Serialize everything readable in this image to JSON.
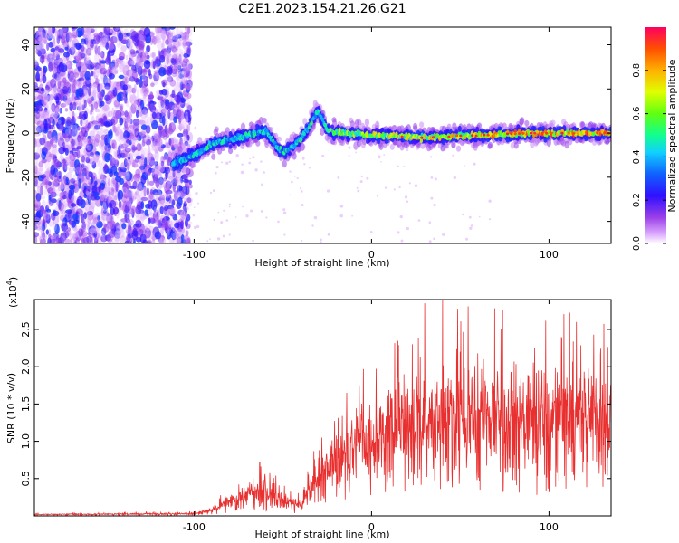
{
  "title": "C2E1.2023.154.21.26.G21",
  "colors": {
    "spectrogram_scale": [
      "#d9a6f5",
      "#9b3fe8",
      "#5a00e0",
      "#1a1aff",
      "#1fbfff",
      "#19ff8c",
      "#9bff19",
      "#ffe000",
      "#ff8000",
      "#ff1050"
    ],
    "snr_line": "#e83030"
  },
  "chart_data": [
    {
      "type": "heatmap",
      "xlabel": "Height of straight line (km)",
      "ylabel": "Frequency (Hz)",
      "xlim": [
        -190,
        135
      ],
      "ylim": [
        -50,
        48
      ],
      "xticks": [
        -100,
        0,
        100
      ],
      "xtick_labels": [
        "-100",
        "0",
        "100"
      ],
      "yticks": [
        -40,
        -20,
        0,
        20,
        40
      ],
      "ytick_labels": [
        "-40",
        "-20",
        "0",
        "20",
        "40"
      ],
      "colorbar": {
        "label": "Normalized spectral amplitude",
        "range": [
          0,
          1
        ],
        "ticks": [
          0.0,
          0.2,
          0.4,
          0.6,
          0.8
        ],
        "tick_labels": [
          "0.0",
          "0.2",
          "0.4",
          "0.6",
          "0.8"
        ]
      },
      "noise_region_x": [
        -190,
        -102
      ],
      "ridge": [
        {
          "x": -112,
          "y": -14,
          "amp": 0.45
        },
        {
          "x": -100,
          "y": -10,
          "amp": 0.5
        },
        {
          "x": -90,
          "y": -5,
          "amp": 0.5
        },
        {
          "x": -75,
          "y": -2,
          "amp": 0.5
        },
        {
          "x": -60,
          "y": 1,
          "amp": 0.48
        },
        {
          "x": -50,
          "y": -9,
          "amp": 0.5
        },
        {
          "x": -40,
          "y": -3,
          "amp": 0.55
        },
        {
          "x": -30,
          "y": 10,
          "amp": 0.5
        },
        {
          "x": -25,
          "y": 1,
          "amp": 0.6
        },
        {
          "x": 0,
          "y": -1,
          "amp": 0.7
        },
        {
          "x": 30,
          "y": -2,
          "amp": 0.75
        },
        {
          "x": 60,
          "y": -1,
          "amp": 0.8
        },
        {
          "x": 90,
          "y": 0,
          "amp": 0.85
        },
        {
          "x": 135,
          "y": 0,
          "amp": 0.9
        }
      ]
    },
    {
      "type": "line",
      "xlabel": "Height of straight line (km)",
      "ylabel": "SNR (10 * v/v)",
      "y_multiplier": "(x10",
      "y_multiplier_exp": "4",
      "y_multiplier_close": ")",
      "xlim": [
        -190,
        135
      ],
      "ylim": [
        0,
        2.9
      ],
      "xticks": [
        -100,
        0,
        100
      ],
      "xtick_labels": [
        "-100",
        "0",
        "100"
      ],
      "yticks": [
        0.5,
        1.0,
        1.5,
        2.0,
        2.5
      ],
      "ytick_labels": [
        "0.5",
        "1.0",
        "1.5",
        "2.0",
        "2.5"
      ],
      "envelope": [
        {
          "x": -190,
          "y": 0.02
        },
        {
          "x": -100,
          "y": 0.03
        },
        {
          "x": -90,
          "y": 0.08
        },
        {
          "x": -80,
          "y": 0.2
        },
        {
          "x": -70,
          "y": 0.3
        },
        {
          "x": -60,
          "y": 0.35
        },
        {
          "x": -50,
          "y": 0.2
        },
        {
          "x": -40,
          "y": 0.15
        },
        {
          "x": -30,
          "y": 0.55
        },
        {
          "x": -20,
          "y": 0.75
        },
        {
          "x": -10,
          "y": 0.95
        },
        {
          "x": 0,
          "y": 1.05
        },
        {
          "x": 10,
          "y": 1.15
        },
        {
          "x": 20,
          "y": 1.2
        },
        {
          "x": 30,
          "y": 1.3
        },
        {
          "x": 40,
          "y": 1.35
        },
        {
          "x": 60,
          "y": 1.35
        },
        {
          "x": 80,
          "y": 1.3
        },
        {
          "x": 100,
          "y": 1.3
        },
        {
          "x": 135,
          "y": 1.3
        }
      ],
      "peaks": [
        {
          "x": -63,
          "y": 0.72
        },
        {
          "x": -28,
          "y": 1.05
        },
        {
          "x": -14,
          "y": 1.65
        },
        {
          "x": 15,
          "y": 1.85
        },
        {
          "x": 30,
          "y": 2.85
        },
        {
          "x": 40,
          "y": 2.9
        },
        {
          "x": 50,
          "y": 2.2
        },
        {
          "x": 73,
          "y": 2.5
        },
        {
          "x": 120,
          "y": 1.7
        }
      ]
    }
  ]
}
